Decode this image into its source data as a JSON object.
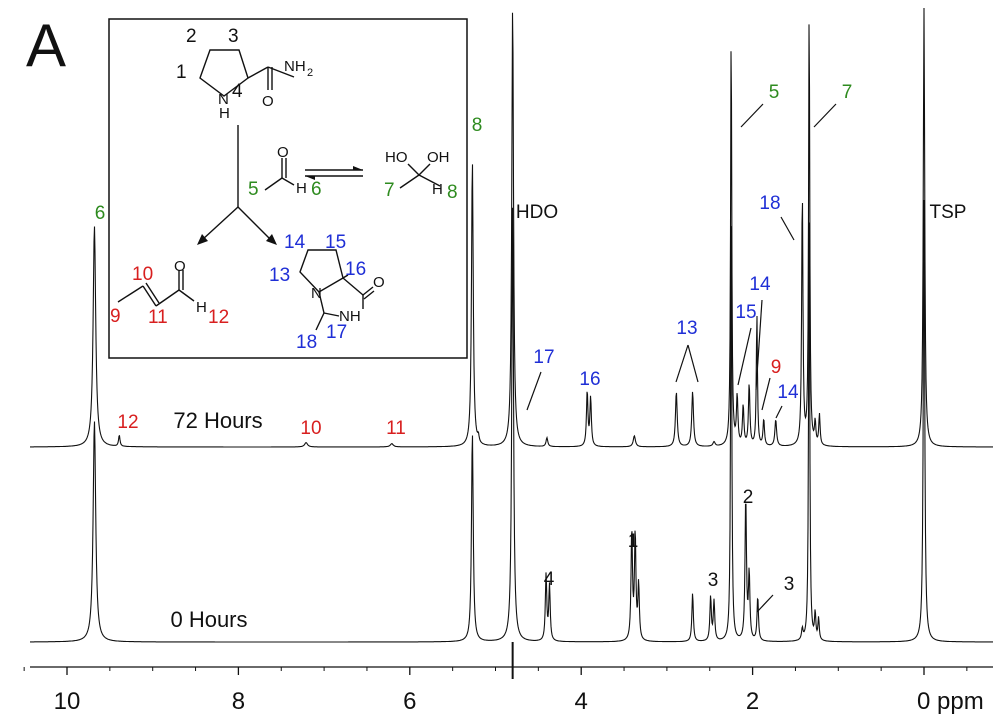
{
  "panel_label": "A",
  "colors": {
    "black": "#111111",
    "green": "#2e8b1f",
    "blue": "#1f2fd6",
    "red": "#d81f1f"
  },
  "chart_data": {
    "type": "line",
    "xlabel": "ppm",
    "xlim": [
      10.5,
      -0.85
    ],
    "x_reversed": true,
    "x_ticks": [
      10,
      8,
      6,
      4,
      2,
      0
    ],
    "x_tick_labels": [
      "10",
      "8",
      "6",
      "4",
      "2",
      "0 ppm"
    ],
    "series": [
      {
        "name": "72 Hours",
        "peaks": [
          {
            "ppm": 9.68,
            "height": 1.0,
            "width": 0.018
          },
          {
            "ppm": 9.39,
            "height": 0.05,
            "width": 0.01
          },
          {
            "ppm": 7.21,
            "height": 0.02,
            "width": 0.02
          },
          {
            "ppm": 6.21,
            "height": 0.015,
            "width": 0.02
          },
          {
            "ppm": 5.27,
            "height": 1.3,
            "width": 0.012
          },
          {
            "ppm": 5.2,
            "height": 0.03,
            "width": 0.01
          },
          {
            "ppm": 4.8,
            "height": 2.0,
            "width": 0.012
          },
          {
            "ppm": 4.4,
            "height": 0.04,
            "width": 0.012
          },
          {
            "ppm": 3.93,
            "height": 0.25,
            "width": 0.01
          },
          {
            "ppm": 3.89,
            "height": 0.22,
            "width": 0.01
          },
          {
            "ppm": 3.38,
            "height": 0.05,
            "width": 0.015
          },
          {
            "ppm": 2.89,
            "height": 0.25,
            "width": 0.012
          },
          {
            "ppm": 2.7,
            "height": 0.25,
            "width": 0.012
          },
          {
            "ppm": 2.45,
            "height": 0.02,
            "width": 0.015
          },
          {
            "ppm": 2.25,
            "height": 1.9,
            "width": 0.008
          },
          {
            "ppm": 2.18,
            "height": 0.22,
            "width": 0.01
          },
          {
            "ppm": 2.11,
            "height": 0.18,
            "width": 0.01
          },
          {
            "ppm": 2.04,
            "height": 0.28,
            "width": 0.01
          },
          {
            "ppm": 1.95,
            "height": 0.6,
            "width": 0.008
          },
          {
            "ppm": 1.87,
            "height": 0.12,
            "width": 0.01
          },
          {
            "ppm": 1.73,
            "height": 0.12,
            "width": 0.012
          },
          {
            "ppm": 1.42,
            "height": 1.15,
            "width": 0.009
          },
          {
            "ppm": 1.34,
            "height": 2.0,
            "width": 0.008
          },
          {
            "ppm": 1.27,
            "height": 0.1,
            "width": 0.009
          },
          {
            "ppm": 1.22,
            "height": 0.14,
            "width": 0.009
          },
          {
            "ppm": 0.0,
            "height": 2.0,
            "width": 0.01
          }
        ]
      },
      {
        "name": "0 Hours",
        "peaks": [
          {
            "ppm": 9.68,
            "height": 1.0,
            "width": 0.018
          },
          {
            "ppm": 5.27,
            "height": 0.95,
            "width": 0.012
          },
          {
            "ppm": 4.8,
            "height": 2.0,
            "width": 0.012
          },
          {
            "ppm": 4.41,
            "height": 0.3,
            "width": 0.01
          },
          {
            "ppm": 4.37,
            "height": 0.25,
            "width": 0.01
          },
          {
            "ppm": 3.41,
            "height": 0.5,
            "width": 0.01
          },
          {
            "ppm": 3.37,
            "height": 0.48,
            "width": 0.01
          },
          {
            "ppm": 3.33,
            "height": 0.25,
            "width": 0.01
          },
          {
            "ppm": 2.7,
            "height": 0.22,
            "width": 0.01
          },
          {
            "ppm": 2.49,
            "height": 0.2,
            "width": 0.01
          },
          {
            "ppm": 2.45,
            "height": 0.18,
            "width": 0.01
          },
          {
            "ppm": 2.25,
            "height": 2.0,
            "width": 0.008
          },
          {
            "ppm": 2.08,
            "height": 0.65,
            "width": 0.01
          },
          {
            "ppm": 2.04,
            "height": 0.3,
            "width": 0.01
          },
          {
            "ppm": 1.94,
            "height": 0.2,
            "width": 0.01
          },
          {
            "ppm": 1.42,
            "height": 0.05,
            "width": 0.01
          },
          {
            "ppm": 1.34,
            "height": 2.0,
            "width": 0.008
          },
          {
            "ppm": 1.27,
            "height": 0.12,
            "width": 0.009
          },
          {
            "ppm": 1.23,
            "height": 0.1,
            "width": 0.009
          },
          {
            "ppm": 0.0,
            "height": 2.0,
            "width": 0.01
          }
        ]
      }
    ],
    "annotations": [
      {
        "text": "6",
        "color": "green",
        "ppm": 9.68
      },
      {
        "text": "12",
        "color": "red",
        "ppm": 9.39
      },
      {
        "text": "72 Hours",
        "color": "black",
        "ppm": 8.2
      },
      {
        "text": "10",
        "color": "red",
        "ppm": 7.21
      },
      {
        "text": "11",
        "color": "red",
        "ppm": 6.21
      },
      {
        "text": "8",
        "color": "green",
        "ppm": 5.27
      },
      {
        "text": "HDO",
        "color": "black",
        "ppm": 4.45
      },
      {
        "text": "17",
        "color": "blue",
        "ppm": 4.45
      },
      {
        "text": "16",
        "color": "blue",
        "ppm": 3.93
      },
      {
        "text": "13",
        "color": "blue",
        "ppm": 2.8
      },
      {
        "text": "15",
        "color": "blue",
        "ppm": 2.1
      },
      {
        "text": "14",
        "color": "blue",
        "ppm": 1.95
      },
      {
        "text": "9",
        "color": "red",
        "ppm": 1.8
      },
      {
        "text": "14",
        "color": "blue",
        "ppm": 1.73
      },
      {
        "text": "5",
        "color": "green",
        "ppm": 2.25
      },
      {
        "text": "7",
        "color": "green",
        "ppm": 1.34
      },
      {
        "text": "18",
        "color": "blue",
        "ppm": 1.42
      },
      {
        "text": "TSP",
        "color": "black",
        "ppm": 0.0
      },
      {
        "text": "0 Hours",
        "color": "black",
        "ppm": 8.2
      },
      {
        "text": "4",
        "color": "black",
        "ppm": 4.39
      },
      {
        "text": "1",
        "color": "black",
        "ppm": 3.37
      },
      {
        "text": "3",
        "color": "black",
        "ppm": 2.49
      },
      {
        "text": "2",
        "color": "black",
        "ppm": 2.08
      },
      {
        "text": "3",
        "color": "black",
        "ppm": 1.94
      }
    ]
  },
  "scheme": {
    "prolinamide_numbers": [
      "1",
      "2",
      "3",
      "4"
    ],
    "nh_label": "N",
    "nh_h": "H",
    "nh2_label": "NH",
    "nh2_sub": "2",
    "carbonyl_o": "O",
    "acetaldehyde_o": "O",
    "acetaldehyde_h": "H",
    "acetaldehyde_numbers": [
      "5",
      "6"
    ],
    "hydrate_ho": "HO",
    "hydrate_oh": "OH",
    "hydrate_h": "H",
    "hydrate_numbers": [
      "7",
      "8"
    ],
    "crotonaldehyde_numbers": [
      "10",
      "9",
      "11",
      "12"
    ],
    "crotonaldehyde_o": "O",
    "crotonaldehyde_h": "H",
    "imid_numbers": [
      "14",
      "15",
      "16",
      "13",
      "17",
      "18"
    ],
    "imid_n": "N",
    "imid_nh": "NH",
    "imid_o": "O"
  }
}
